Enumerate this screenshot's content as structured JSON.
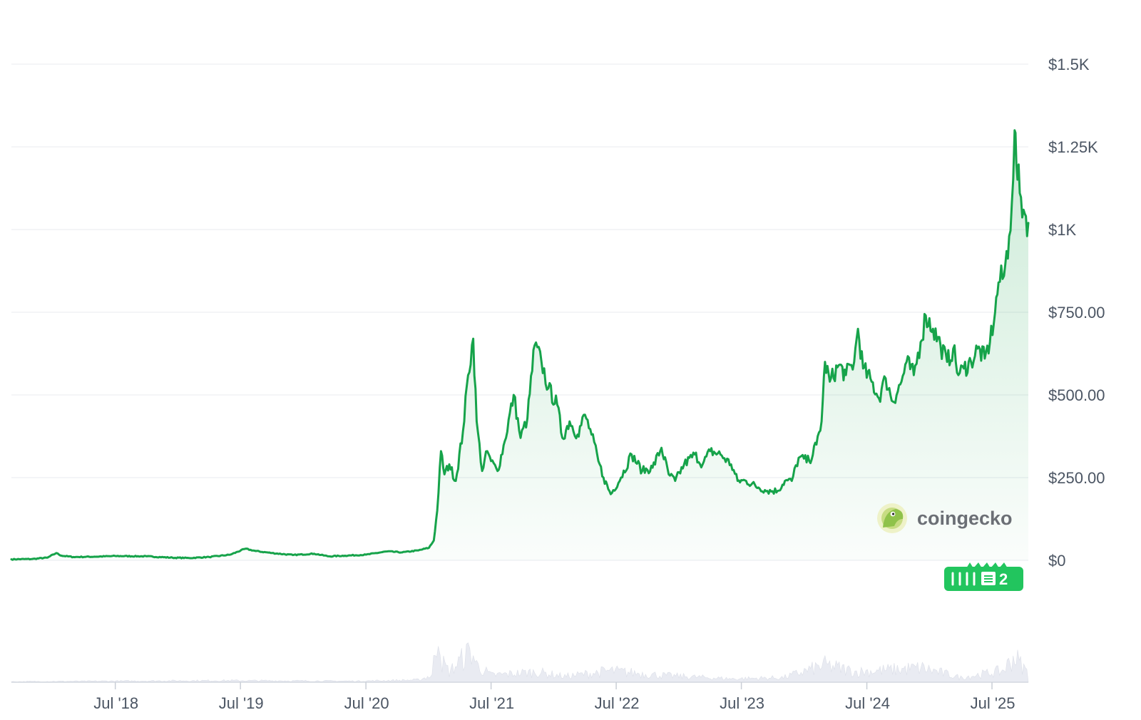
{
  "chart_data": {
    "type": "area",
    "title": "",
    "xlabel": "",
    "ylabel": "",
    "x_tick_labels": [
      "Jul '18",
      "Jul '19",
      "Jul '20",
      "Jul '21",
      "Jul '22",
      "Jul '23",
      "Jul '24",
      "Jul '25"
    ],
    "y_tick_labels": [
      "$0",
      "$250.00",
      "$500.00",
      "$750.00",
      "$1K",
      "$1.25K",
      "$1.5K"
    ],
    "y_tick_values": [
      0,
      250,
      500,
      750,
      1000,
      1250,
      1500
    ],
    "ylim": [
      0,
      1500
    ],
    "xlim": [
      "2017-09-01",
      "2025-10-15"
    ],
    "grid": true,
    "y_axis_position": "right",
    "series": [
      {
        "color": "#16a34a",
        "points": [
          [
            "2017-09-01",
            3
          ],
          [
            "2017-11-01",
            4
          ],
          [
            "2017-12-15",
            8
          ],
          [
            "2018-01-10",
            22
          ],
          [
            "2018-01-25",
            14
          ],
          [
            "2018-03-01",
            10
          ],
          [
            "2018-05-01",
            11
          ],
          [
            "2018-07-01",
            13
          ],
          [
            "2018-10-01",
            12
          ],
          [
            "2018-12-15",
            8
          ],
          [
            "2019-02-01",
            7
          ],
          [
            "2019-04-01",
            10
          ],
          [
            "2019-06-01",
            17
          ],
          [
            "2019-07-15",
            35
          ],
          [
            "2019-08-15",
            28
          ],
          [
            "2019-10-01",
            22
          ],
          [
            "2019-12-01",
            16
          ],
          [
            "2020-02-01",
            20
          ],
          [
            "2020-03-15",
            12
          ],
          [
            "2020-05-01",
            14
          ],
          [
            "2020-07-01",
            17
          ],
          [
            "2020-09-01",
            27
          ],
          [
            "2020-10-15",
            24
          ],
          [
            "2020-12-01",
            30
          ],
          [
            "2021-01-01",
            38
          ],
          [
            "2021-01-15",
            60
          ],
          [
            "2021-01-25",
            150
          ],
          [
            "2021-02-05",
            330
          ],
          [
            "2021-02-15",
            260
          ],
          [
            "2021-03-01",
            290
          ],
          [
            "2021-03-20",
            240
          ],
          [
            "2021-04-10",
            390
          ],
          [
            "2021-04-25",
            560
          ],
          [
            "2021-05-10",
            670
          ],
          [
            "2021-05-20",
            420
          ],
          [
            "2021-06-05",
            270
          ],
          [
            "2021-06-20",
            330
          ],
          [
            "2021-07-01",
            300
          ],
          [
            "2021-07-20",
            270
          ],
          [
            "2021-08-10",
            360
          ],
          [
            "2021-09-05",
            500
          ],
          [
            "2021-09-25",
            370
          ],
          [
            "2021-10-15",
            430
          ],
          [
            "2021-11-05",
            650
          ],
          [
            "2021-11-25",
            600
          ],
          [
            "2021-12-15",
            520
          ],
          [
            "2022-01-10",
            470
          ],
          [
            "2022-01-25",
            370
          ],
          [
            "2022-02-15",
            420
          ],
          [
            "2022-03-10",
            380
          ],
          [
            "2022-04-01",
            440
          ],
          [
            "2022-04-20",
            380
          ],
          [
            "2022-05-10",
            300
          ],
          [
            "2022-05-25",
            250
          ],
          [
            "2022-06-15",
            200
          ],
          [
            "2022-07-15",
            250
          ],
          [
            "2022-08-15",
            320
          ],
          [
            "2022-09-15",
            270
          ],
          [
            "2022-10-15",
            280
          ],
          [
            "2022-11-10",
            340
          ],
          [
            "2022-12-01",
            260
          ],
          [
            "2022-12-20",
            240
          ],
          [
            "2023-01-15",
            290
          ],
          [
            "2023-02-15",
            320
          ],
          [
            "2023-03-10",
            290
          ],
          [
            "2023-04-01",
            330
          ],
          [
            "2023-05-01",
            320
          ],
          [
            "2023-06-01",
            290
          ],
          [
            "2023-06-20",
            240
          ],
          [
            "2023-07-15",
            240
          ],
          [
            "2023-08-20",
            220
          ],
          [
            "2023-09-15",
            210
          ],
          [
            "2023-10-15",
            210
          ],
          [
            "2023-11-05",
            240
          ],
          [
            "2023-11-25",
            240
          ],
          [
            "2023-12-15",
            310
          ],
          [
            "2024-01-15",
            300
          ],
          [
            "2024-02-05",
            350
          ],
          [
            "2024-02-20",
            420
          ],
          [
            "2024-03-01",
            600
          ],
          [
            "2024-03-15",
            540
          ],
          [
            "2024-04-10",
            590
          ],
          [
            "2024-05-01",
            560
          ],
          [
            "2024-05-25",
            600
          ],
          [
            "2024-06-05",
            700
          ],
          [
            "2024-06-20",
            580
          ],
          [
            "2024-07-15",
            540
          ],
          [
            "2024-08-05",
            490
          ],
          [
            "2024-08-25",
            550
          ],
          [
            "2024-09-15",
            480
          ],
          [
            "2024-10-10",
            540
          ],
          [
            "2024-10-25",
            600
          ],
          [
            "2024-11-15",
            560
          ],
          [
            "2024-12-05",
            660
          ],
          [
            "2024-12-20",
            740
          ],
          [
            "2025-01-10",
            700
          ],
          [
            "2025-02-01",
            650
          ],
          [
            "2025-02-20",
            600
          ],
          [
            "2025-03-10",
            640
          ],
          [
            "2025-03-25",
            560
          ],
          [
            "2025-04-10",
            580
          ],
          [
            "2025-05-01",
            600
          ],
          [
            "2025-05-20",
            640
          ],
          [
            "2025-06-10",
            610
          ],
          [
            "2025-06-25",
            660
          ],
          [
            "2025-07-10",
            750
          ],
          [
            "2025-07-20",
            840
          ],
          [
            "2025-08-05",
            860
          ],
          [
            "2025-08-20",
            980
          ],
          [
            "2025-08-28",
            1080
          ],
          [
            "2025-09-05",
            1300
          ],
          [
            "2025-09-10",
            1200
          ],
          [
            "2025-09-20",
            1110
          ],
          [
            "2025-10-01",
            1060
          ],
          [
            "2025-10-15",
            1020
          ]
        ]
      }
    ],
    "volume": [
      [
        "2017-09-01",
        0.01
      ],
      [
        "2018-06-01",
        0.02
      ],
      [
        "2019-06-01",
        0.03
      ],
      [
        "2020-06-01",
        0.02
      ],
      [
        "2020-12-01",
        0.04
      ],
      [
        "2021-01-10",
        0.12
      ],
      [
        "2021-01-28",
        1.0
      ],
      [
        "2021-02-08",
        0.35
      ],
      [
        "2021-03-01",
        0.18
      ],
      [
        "2021-04-15",
        0.45
      ],
      [
        "2021-05-05",
        0.55
      ],
      [
        "2021-05-20",
        0.3
      ],
      [
        "2021-07-01",
        0.12
      ],
      [
        "2021-11-10",
        0.18
      ],
      [
        "2022-02-01",
        0.1
      ],
      [
        "2022-06-15",
        0.2
      ],
      [
        "2022-11-10",
        0.12
      ],
      [
        "2023-06-01",
        0.06
      ],
      [
        "2023-11-01",
        0.08
      ],
      [
        "2024-03-01",
        0.3
      ],
      [
        "2024-06-01",
        0.18
      ],
      [
        "2024-12-10",
        0.25
      ],
      [
        "2025-04-01",
        0.08
      ],
      [
        "2025-08-01",
        0.2
      ],
      [
        "2025-09-05",
        0.45
      ],
      [
        "2025-10-15",
        0.15
      ]
    ]
  },
  "watermark": {
    "text": "coingecko",
    "icon": "coingecko-gecko-icon"
  },
  "news_badge": {
    "count": "2",
    "icon": "newspaper-icon",
    "color": "#22c55e"
  }
}
